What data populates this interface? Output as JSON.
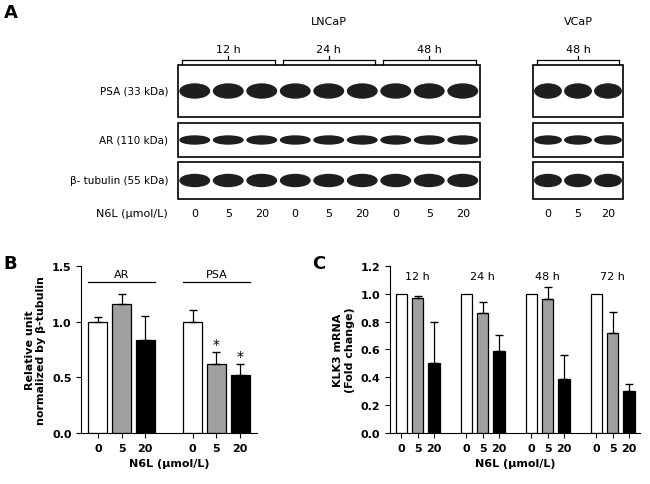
{
  "panel_a": {
    "panel": "A",
    "type": "western_blot",
    "cell_lines": [
      {
        "name": "LNCaP",
        "groups": [
          "12 h",
          "24 h",
          "48 h"
        ]
      },
      {
        "name": "VCaP",
        "groups": [
          "48 h"
        ]
      }
    ],
    "rows": [
      "PSA (33 kDa)",
      "AR (110 kDa)",
      "β- tubulin (55 kDa)"
    ],
    "dose_label": "N6L (μmol/L)",
    "doses": [
      0,
      5,
      20
    ]
  },
  "chart_data": [
    {
      "panel": "B",
      "type": "bar",
      "categories": [
        "0",
        "5",
        "20"
      ],
      "colors": [
        "#ffffff",
        "#a0a0a0",
        "#000000"
      ],
      "xlabel": "N6L (μmol/L)",
      "ylabel": "Relative unit\nnormalized by β-tubulin",
      "ylim": [
        0,
        1.5
      ],
      "yticks": [
        {
          "value": 0,
          "label": "0.0"
        },
        {
          "value": 0.5,
          "label": "0.5"
        },
        {
          "value": 1.0,
          "label": "1.0"
        },
        {
          "value": 1.5,
          "label": "1.5"
        }
      ],
      "series": [
        {
          "name": "AR",
          "values": [
            1.0,
            1.16,
            0.83
          ],
          "errors": [
            0.04,
            0.09,
            0.22
          ]
        },
        {
          "name": "PSA",
          "values": [
            1.0,
            0.62,
            0.52
          ],
          "errors": [
            0.1,
            0.11,
            0.1
          ],
          "annotations": [
            null,
            "*",
            "*"
          ]
        }
      ]
    },
    {
      "panel": "C",
      "type": "bar",
      "categories": [
        "0",
        "5",
        "20"
      ],
      "colors": [
        "#ffffff",
        "#a0a0a0",
        "#000000"
      ],
      "xlabel": "N6L (μmol/L)",
      "ylabel": "KLK3 mRNA\n(Fold change)",
      "ylim": [
        0,
        1.2
      ],
      "yticks": [
        {
          "value": 0,
          "label": "0.0"
        },
        {
          "value": 0.2,
          "label": "0.2"
        },
        {
          "value": 0.4,
          "label": "0.4"
        },
        {
          "value": 0.6,
          "label": "0.6"
        },
        {
          "value": 0.8,
          "label": "0.8"
        },
        {
          "value": 1.0,
          "label": "1.0"
        },
        {
          "value": 1.2,
          "label": "1.2"
        }
      ],
      "series": [
        {
          "name": "12 h",
          "values": [
            1.0,
            0.97,
            0.5
          ],
          "errors": [
            null,
            0.01,
            0.3
          ]
        },
        {
          "name": "24 h",
          "values": [
            1.0,
            0.86,
            0.59
          ],
          "errors": [
            null,
            0.08,
            0.11
          ]
        },
        {
          "name": "48 h",
          "values": [
            1.0,
            0.96,
            0.39
          ],
          "errors": [
            null,
            0.09,
            0.17
          ]
        },
        {
          "name": "72 h",
          "values": [
            1.0,
            0.72,
            0.3
          ],
          "errors": [
            null,
            0.15,
            0.05
          ]
        }
      ]
    }
  ]
}
